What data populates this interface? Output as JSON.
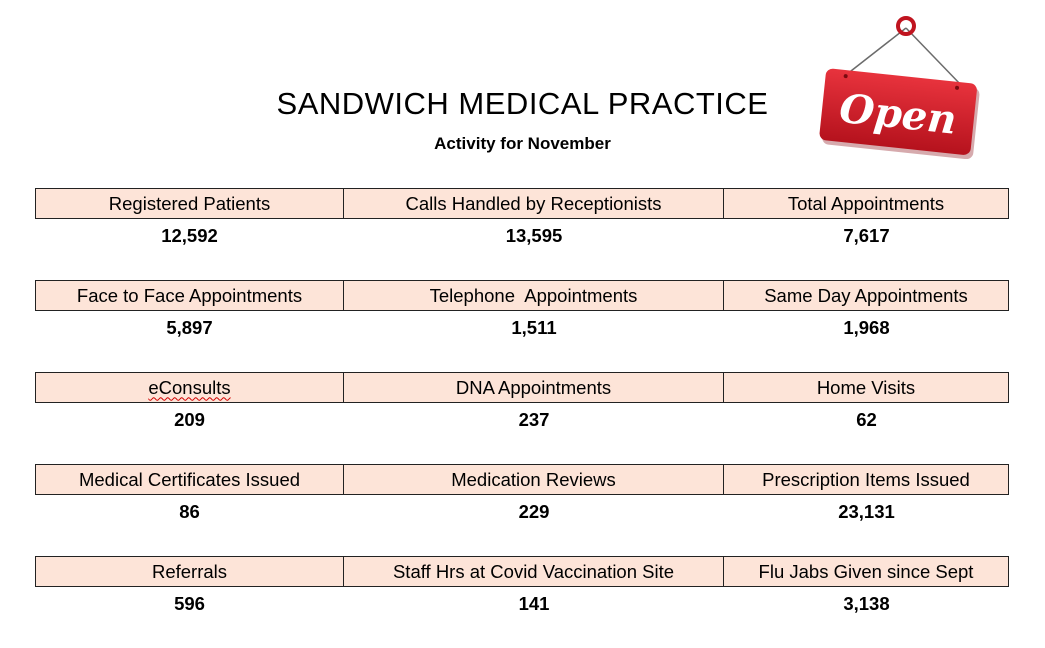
{
  "header": {
    "title": "SANDWICH MEDICAL PRACTICE",
    "subtitle": "Activity for November",
    "sign_text": "Open"
  },
  "colors": {
    "cell_fill": "#fde4d8",
    "sign_red": "#d3202c"
  },
  "rows": [
    {
      "labels": [
        "Registered Patients",
        "Calls Handled by Receptionists",
        "Total Appointments"
      ],
      "values": [
        "12,592",
        "13,595",
        "7,617"
      ]
    },
    {
      "labels": [
        "Face to Face Appointments",
        "Telephone  Appointments",
        "Same Day Appointments"
      ],
      "values": [
        "5,897",
        "1,511",
        "1,968"
      ]
    },
    {
      "labels": [
        "eConsults",
        "DNA Appointments",
        "Home Visits"
      ],
      "values": [
        "209",
        "237",
        "62"
      ]
    },
    {
      "labels": [
        "Medical Certificates Issued",
        "Medication Reviews",
        "Prescription Items Issued"
      ],
      "values": [
        "86",
        "229",
        "23,131"
      ]
    },
    {
      "labels": [
        "Referrals",
        "Staff Hrs at Covid Vaccination Site",
        "Flu Jabs Given since Sept"
      ],
      "values": [
        "596",
        "141",
        "3,138"
      ]
    }
  ]
}
